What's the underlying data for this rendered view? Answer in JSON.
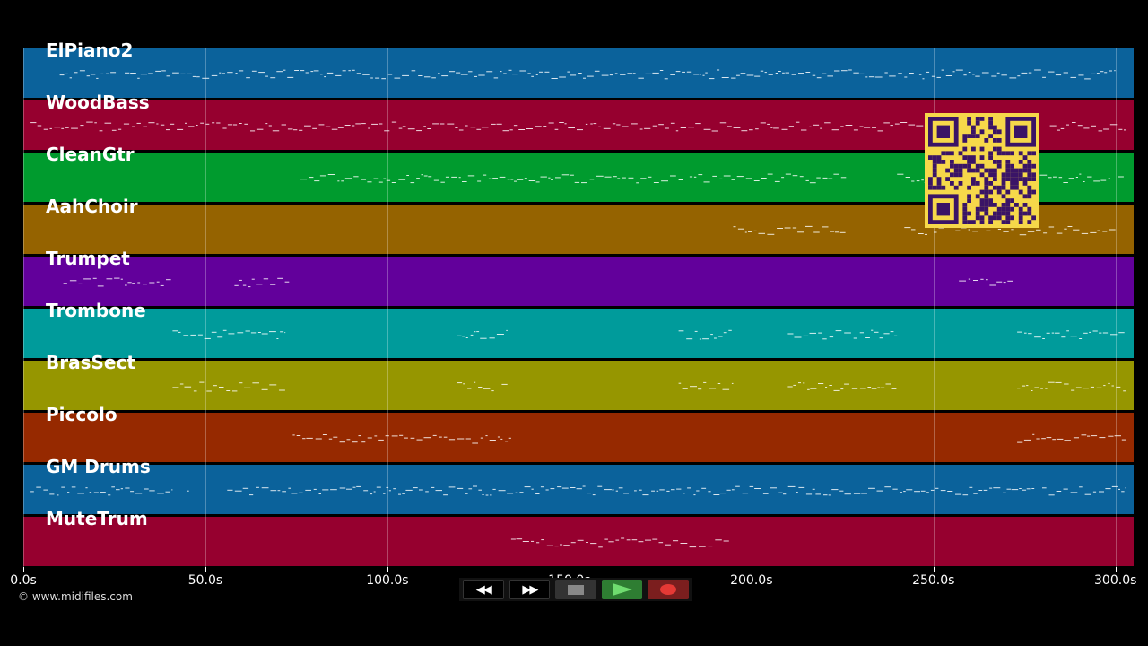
{
  "tracks": [
    {
      "name": "ElPiano2",
      "color": "#0b629b"
    },
    {
      "name": "WoodBass",
      "color": "#96002f"
    },
    {
      "name": "CleanGtr",
      "color": "#009b2e"
    },
    {
      "name": "AahChoir",
      "color": "#956300"
    },
    {
      "name": "Trumpet",
      "color": "#62009b"
    },
    {
      "name": "Trombone",
      "color": "#009b9b"
    },
    {
      "name": "BrasSect",
      "color": "#969600"
    },
    {
      "name": "Piccolo",
      "color": "#962900"
    },
    {
      "name": "GM Drums",
      "color": "#0b629b"
    },
    {
      "name": "MuteTrum",
      "color": "#96002f"
    }
  ],
  "timeline": {
    "max_seconds": 305,
    "ticks": [
      "0.0s",
      "50.0s",
      "100.0s",
      "150.0s",
      "200.0s",
      "250.0s",
      "300.0s"
    ],
    "tick_values": [
      0,
      50,
      100,
      150,
      200,
      250,
      300
    ]
  },
  "note_segments": [
    [
      [
        10,
        300
      ]
    ],
    [
      [
        2,
        252
      ],
      [
        282,
        303
      ]
    ],
    [
      [
        76,
        226
      ],
      [
        240,
        303
      ]
    ],
    [
      [
        195,
        226
      ],
      [
        242,
        300
      ]
    ],
    [
      [
        11,
        41
      ],
      [
        58,
        73
      ],
      [
        257,
        272
      ]
    ],
    [
      [
        41,
        72
      ],
      [
        119,
        133
      ],
      [
        180,
        195
      ],
      [
        210,
        240
      ],
      [
        273,
        303
      ]
    ],
    [
      [
        41,
        72
      ],
      [
        119,
        133
      ],
      [
        180,
        195
      ],
      [
        210,
        240
      ],
      [
        273,
        303
      ]
    ],
    [
      [
        74,
        134
      ],
      [
        273,
        303
      ]
    ],
    [
      [
        2,
        41
      ],
      [
        45,
        45.5
      ],
      [
        56,
        303
      ]
    ],
    [
      [
        134,
        194
      ]
    ]
  ],
  "copyright": "© www.midifiles.com",
  "controls": {
    "rewind": "◀◀",
    "fast_forward": "▶▶"
  }
}
